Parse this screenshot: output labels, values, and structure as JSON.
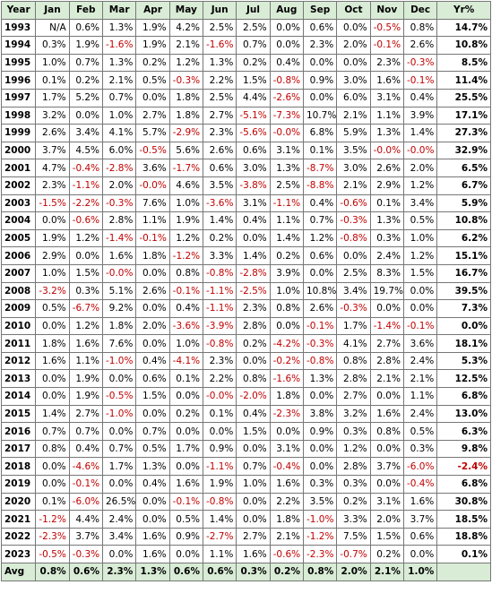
{
  "table": {
    "header": [
      "Year",
      "Jan",
      "Feb",
      "Mar",
      "Apr",
      "May",
      "Jun",
      "Jul",
      "Aug",
      "Sep",
      "Oct",
      "Nov",
      "Dec",
      "Yr%"
    ],
    "rows": [
      [
        "1993",
        "N/A",
        "0.6%",
        "1.3%",
        "1.9%",
        "4.2%",
        "2.5%",
        "2.5%",
        "0.0%",
        "0.6%",
        "0.0%",
        "-0.5%",
        "0.8%",
        "14.7%"
      ],
      [
        "1994",
        "0.3%",
        "1.9%",
        "-1.6%",
        "1.9%",
        "2.1%",
        "-1.6%",
        "0.7%",
        "0.0%",
        "2.3%",
        "2.0%",
        "-0.1%",
        "2.6%",
        "10.8%"
      ],
      [
        "1995",
        "1.0%",
        "0.7%",
        "1.3%",
        "0.2%",
        "1.2%",
        "1.3%",
        "0.2%",
        "0.4%",
        "0.0%",
        "0.0%",
        "2.3%",
        "-0.3%",
        "8.5%"
      ],
      [
        "1996",
        "0.1%",
        "0.2%",
        "2.1%",
        "0.5%",
        "-0.3%",
        "2.2%",
        "1.5%",
        "-0.8%",
        "0.9%",
        "3.0%",
        "1.6%",
        "-0.1%",
        "11.4%"
      ],
      [
        "1997",
        "1.7%",
        "5.2%",
        "0.7%",
        "0.0%",
        "1.8%",
        "2.5%",
        "4.4%",
        "-2.6%",
        "0.0%",
        "6.0%",
        "3.1%",
        "0.4%",
        "25.5%"
      ],
      [
        "1998",
        "3.2%",
        "0.0%",
        "1.0%",
        "2.7%",
        "1.8%",
        "2.7%",
        "-5.1%",
        "-7.3%",
        "10.7%",
        "2.1%",
        "1.1%",
        "3.9%",
        "17.1%"
      ],
      [
        "1999",
        "2.6%",
        "3.4%",
        "4.1%",
        "5.7%",
        "-2.9%",
        "2.3%",
        "-5.6%",
        "-0.0%",
        "6.8%",
        "5.9%",
        "1.3%",
        "1.4%",
        "27.3%"
      ],
      [
        "2000",
        "3.7%",
        "4.5%",
        "6.0%",
        "-0.5%",
        "5.6%",
        "2.6%",
        "0.6%",
        "3.1%",
        "0.1%",
        "3.5%",
        "-0.0%",
        "-0.0%",
        "32.9%"
      ],
      [
        "2001",
        "4.7%",
        "-0.4%",
        "-2.8%",
        "3.6%",
        "-1.7%",
        "0.6%",
        "3.0%",
        "1.3%",
        "-8.7%",
        "3.0%",
        "2.6%",
        "2.0%",
        "6.5%"
      ],
      [
        "2002",
        "2.3%",
        "-1.1%",
        "2.0%",
        "-0.0%",
        "4.6%",
        "3.5%",
        "-3.8%",
        "2.5%",
        "-8.8%",
        "2.1%",
        "2.9%",
        "1.2%",
        "6.7%"
      ],
      [
        "2003",
        "-1.5%",
        "-2.2%",
        "-0.3%",
        "7.6%",
        "1.0%",
        "-3.6%",
        "3.1%",
        "-1.1%",
        "0.4%",
        "-0.6%",
        "0.1%",
        "3.4%",
        "5.9%"
      ],
      [
        "2004",
        "0.0%",
        "-0.6%",
        "2.8%",
        "1.1%",
        "1.9%",
        "1.4%",
        "0.4%",
        "1.1%",
        "0.7%",
        "-0.3%",
        "1.3%",
        "0.5%",
        "10.8%"
      ],
      [
        "2005",
        "1.9%",
        "1.2%",
        "-1.4%",
        "-0.1%",
        "1.2%",
        "0.2%",
        "0.0%",
        "1.4%",
        "1.2%",
        "-0.8%",
        "0.3%",
        "1.0%",
        "6.2%"
      ],
      [
        "2006",
        "2.9%",
        "0.0%",
        "1.6%",
        "1.8%",
        "-1.2%",
        "3.3%",
        "1.4%",
        "0.2%",
        "0.6%",
        "0.0%",
        "2.4%",
        "1.2%",
        "15.1%"
      ],
      [
        "2007",
        "1.0%",
        "1.5%",
        "-0.0%",
        "0.0%",
        "0.8%",
        "-0.8%",
        "-2.8%",
        "3.9%",
        "0.0%",
        "2.5%",
        "8.3%",
        "1.5%",
        "16.7%"
      ],
      [
        "2008",
        "-3.2%",
        "0.3%",
        "5.1%",
        "2.6%",
        "-0.1%",
        "-1.1%",
        "-2.5%",
        "1.0%",
        "10.8%",
        "3.4%",
        "19.7%",
        "0.0%",
        "39.5%"
      ],
      [
        "2009",
        "0.5%",
        "-6.7%",
        "9.2%",
        "0.0%",
        "0.4%",
        "-1.1%",
        "2.3%",
        "0.8%",
        "2.6%",
        "-0.3%",
        "0.0%",
        "0.0%",
        "7.3%"
      ],
      [
        "2010",
        "0.0%",
        "1.2%",
        "1.8%",
        "2.0%",
        "-3.6%",
        "-3.9%",
        "2.8%",
        "0.0%",
        "-0.1%",
        "1.7%",
        "-1.4%",
        "-0.1%",
        "0.0%"
      ],
      [
        "2011",
        "1.8%",
        "1.6%",
        "7.6%",
        "0.0%",
        "1.0%",
        "-0.8%",
        "0.2%",
        "-4.2%",
        "-0.3%",
        "4.1%",
        "2.7%",
        "3.6%",
        "18.1%"
      ],
      [
        "2012",
        "1.6%",
        "1.1%",
        "-1.0%",
        "0.4%",
        "-4.1%",
        "2.3%",
        "0.0%",
        "-0.2%",
        "-0.8%",
        "0.8%",
        "2.8%",
        "2.4%",
        "5.3%"
      ],
      [
        "2013",
        "0.0%",
        "1.9%",
        "0.0%",
        "0.6%",
        "0.1%",
        "2.2%",
        "0.8%",
        "-1.6%",
        "1.3%",
        "2.8%",
        "2.1%",
        "2.1%",
        "12.5%"
      ],
      [
        "2014",
        "0.0%",
        "1.9%",
        "-0.5%",
        "1.5%",
        "0.0%",
        "-0.0%",
        "-2.0%",
        "1.8%",
        "0.0%",
        "2.7%",
        "0.0%",
        "1.1%",
        "6.8%"
      ],
      [
        "2015",
        "1.4%",
        "2.7%",
        "-1.0%",
        "0.0%",
        "0.2%",
        "0.1%",
        "0.4%",
        "-2.3%",
        "3.8%",
        "3.2%",
        "1.6%",
        "2.4%",
        "13.0%"
      ],
      [
        "2016",
        "0.7%",
        "0.7%",
        "0.0%",
        "0.7%",
        "0.0%",
        "0.0%",
        "1.5%",
        "0.0%",
        "0.9%",
        "0.3%",
        "0.8%",
        "0.5%",
        "6.3%"
      ],
      [
        "2017",
        "0.8%",
        "0.4%",
        "0.7%",
        "0.5%",
        "1.7%",
        "0.9%",
        "0.0%",
        "3.1%",
        "0.0%",
        "1.2%",
        "0.0%",
        "0.3%",
        "9.8%"
      ],
      [
        "2018",
        "0.0%",
        "-4.6%",
        "1.7%",
        "1.3%",
        "0.0%",
        "-1.1%",
        "0.7%",
        "-0.4%",
        "0.0%",
        "2.8%",
        "3.7%",
        "-6.0%",
        "-2.4%"
      ],
      [
        "2019",
        "0.0%",
        "-0.1%",
        "0.0%",
        "0.4%",
        "1.6%",
        "1.9%",
        "1.0%",
        "1.6%",
        "0.3%",
        "0.3%",
        "0.0%",
        "-0.4%",
        "6.8%"
      ],
      [
        "2020",
        "0.1%",
        "-6.0%",
        "26.5%",
        "0.0%",
        "-0.1%",
        "-0.8%",
        "0.0%",
        "2.2%",
        "3.5%",
        "0.2%",
        "3.1%",
        "1.6%",
        "30.8%"
      ],
      [
        "2021",
        "-1.2%",
        "4.4%",
        "2.4%",
        "0.0%",
        "0.5%",
        "1.4%",
        "0.0%",
        "1.8%",
        "-1.0%",
        "3.3%",
        "2.0%",
        "3.7%",
        "18.5%"
      ],
      [
        "2022",
        "-2.3%",
        "3.7%",
        "3.4%",
        "1.6%",
        "0.9%",
        "-2.7%",
        "2.7%",
        "2.1%",
        "-1.2%",
        "7.5%",
        "1.5%",
        "0.6%",
        "18.8%"
      ],
      [
        "2023",
        "-0.5%",
        "-0.3%",
        "0.0%",
        "1.6%",
        "0.0%",
        "1.1%",
        "1.6%",
        "-0.6%",
        "-2.3%",
        "-0.7%",
        "0.2%",
        "0.0%",
        "0.1%"
      ]
    ],
    "avg": [
      "Avg",
      "0.8%",
      "0.6%",
      "2.3%",
      "1.3%",
      "0.6%",
      "0.6%",
      "0.3%",
      "0.2%",
      "0.8%",
      "2.0%",
      "2.1%",
      "1.0%"
    ]
  }
}
